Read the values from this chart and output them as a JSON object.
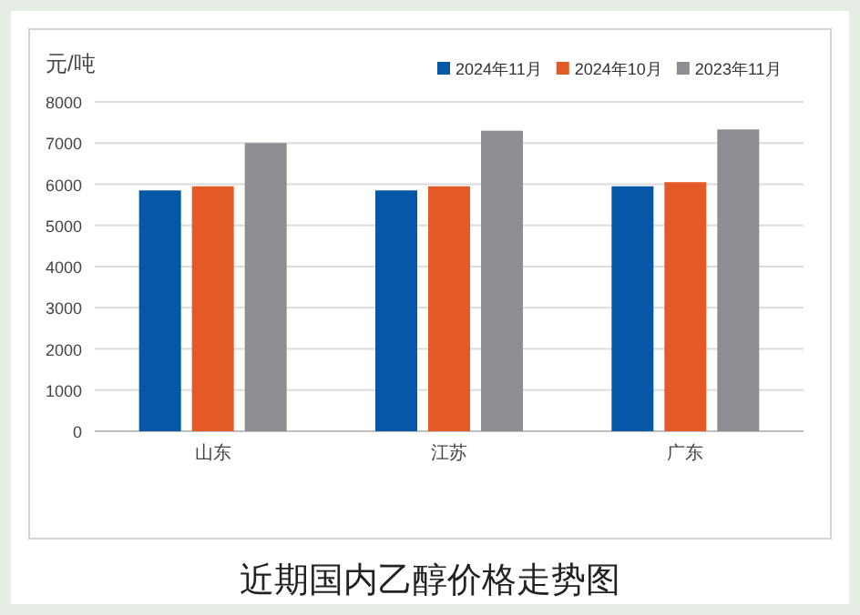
{
  "chart_data": {
    "type": "bar",
    "title": "近期国内乙醇价格走势图",
    "ylabel": "元/吨",
    "categories": [
      "山东",
      "江苏",
      "广东"
    ],
    "series": [
      {
        "name": "2024年11月",
        "color": "#0558a8",
        "values": [
          5850,
          5850,
          5950
        ]
      },
      {
        "name": "2024年10月",
        "color": "#e35a27",
        "values": [
          5950,
          5950,
          6050
        ]
      },
      {
        "name": "2023年11月",
        "color": "#8c8e91",
        "values": [
          7000,
          7300,
          7330
        ]
      }
    ],
    "ylim": [
      0,
      8000
    ],
    "yticks": [
      0,
      1000,
      2000,
      3000,
      4000,
      5000,
      6000,
      7000,
      8000
    ],
    "grid": "y",
    "legend": "top right"
  }
}
